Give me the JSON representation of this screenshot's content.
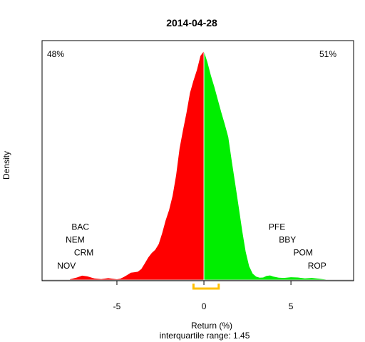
{
  "chart_data": {
    "type": "area",
    "title": "2014-04-28",
    "xlabel": "Return (%)",
    "ylabel": "Density",
    "subtitle": "interquartile range: 1.45",
    "xlim": [
      -9.3,
      8.6
    ],
    "ylim": [
      0,
      1
    ],
    "x_ticks": [
      {
        "value": -5,
        "label": "-5"
      },
      {
        "value": 0,
        "label": "0"
      },
      {
        "value": 5,
        "label": "5"
      }
    ],
    "neg_pct": "48%",
    "pos_pct": "51%",
    "colors": {
      "negative": "#ff0000",
      "positive": "#00ee00",
      "iqr": "#ffc000",
      "axis": "#000000",
      "baseline": "#bebebe"
    },
    "iqr_range": [
      -0.6,
      0.85
    ],
    "density": {
      "x": [
        -7.7,
        -7.3,
        -7.0,
        -6.7,
        -6.3,
        -5.9,
        -5.5,
        -5.2,
        -5.0,
        -4.8,
        -4.6,
        -4.4,
        -4.2,
        -4.0,
        -3.8,
        -3.6,
        -3.4,
        -3.2,
        -3.0,
        -2.8,
        -2.6,
        -2.4,
        -2.2,
        -2.0,
        -1.8,
        -1.6,
        -1.4,
        -1.2,
        -1.0,
        -0.8,
        -0.6,
        -0.4,
        -0.2,
        0.0,
        0.2,
        0.4,
        0.6,
        0.8,
        1.0,
        1.2,
        1.4,
        1.6,
        1.8,
        2.0,
        2.2,
        2.4,
        2.6,
        2.8,
        3.0,
        3.2,
        3.4,
        3.6,
        3.8,
        4.0,
        4.3,
        4.6,
        5.0,
        5.4,
        5.8,
        6.2,
        6.6,
        7.0
      ],
      "y": [
        0.003,
        0.011,
        0.019,
        0.016,
        0.007,
        0.004,
        0.008,
        0.005,
        0.003,
        0.006,
        0.013,
        0.022,
        0.032,
        0.034,
        0.036,
        0.048,
        0.072,
        0.098,
        0.118,
        0.132,
        0.157,
        0.205,
        0.26,
        0.306,
        0.368,
        0.457,
        0.575,
        0.655,
        0.731,
        0.818,
        0.872,
        0.919,
        0.98,
        1.0,
        0.953,
        0.894,
        0.844,
        0.788,
        0.732,
        0.681,
        0.625,
        0.52,
        0.42,
        0.318,
        0.214,
        0.124,
        0.06,
        0.028,
        0.015,
        0.01,
        0.011,
        0.018,
        0.02,
        0.015,
        0.01,
        0.009,
        0.012,
        0.011,
        0.007,
        0.009,
        0.006,
        0.002
      ]
    },
    "annotations": [
      {
        "label": "BAC",
        "x": -7.1,
        "y": 0.22
      },
      {
        "label": "NEM",
        "x": -7.4,
        "y": 0.163
      },
      {
        "label": "CRM",
        "x": -6.9,
        "y": 0.107
      },
      {
        "label": "NOV",
        "x": -7.9,
        "y": 0.05
      },
      {
        "label": "PFE",
        "x": 4.2,
        "y": 0.22
      },
      {
        "label": "BBY",
        "x": 4.8,
        "y": 0.163
      },
      {
        "label": "POM",
        "x": 5.7,
        "y": 0.107
      },
      {
        "label": "ROP",
        "x": 6.5,
        "y": 0.05
      }
    ]
  }
}
